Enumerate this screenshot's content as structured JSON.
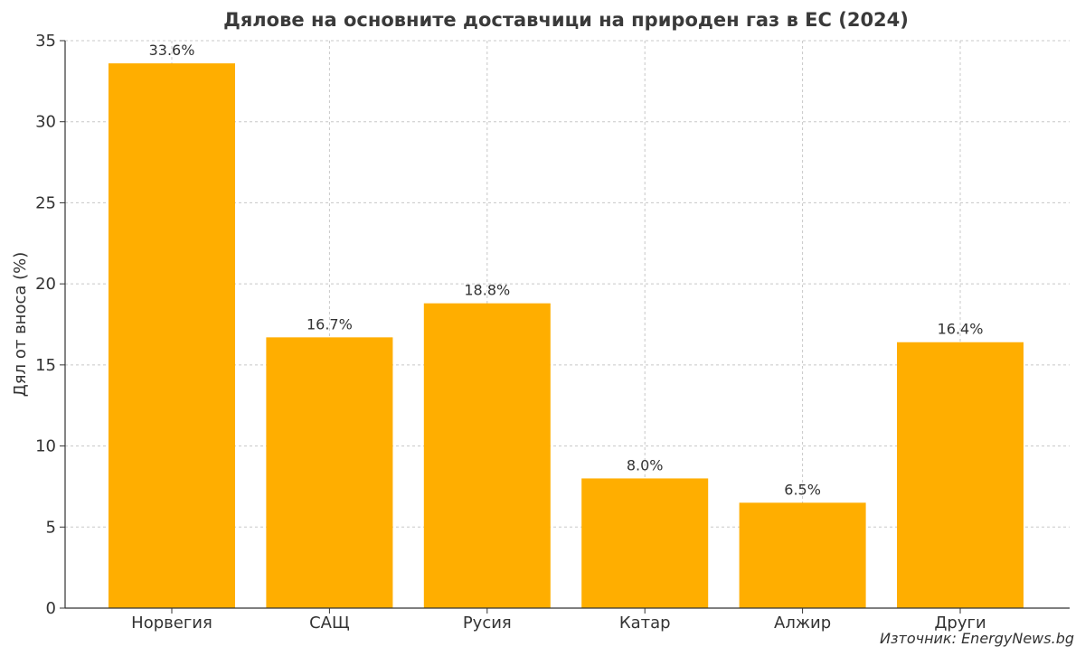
{
  "chart_data": {
    "type": "bar",
    "title": "Дялове на основните доставчици на природен газ в ЕС (2024)",
    "xlabel": "",
    "ylabel": "Дял от вноса (%)",
    "categories": [
      "Норвегия",
      "САЩ",
      "Русия",
      "Катар",
      "Алжир",
      "Други"
    ],
    "values": [
      33.6,
      16.7,
      18.8,
      8.0,
      6.5,
      16.4
    ],
    "data_labels": [
      "33.6%",
      "16.7%",
      "18.8%",
      "8.0%",
      "6.5%",
      "16.4%"
    ],
    "ylim": [
      0,
      35
    ],
    "yticks": [
      0,
      5,
      10,
      15,
      20,
      25,
      30,
      35
    ],
    "grid": true,
    "bar_color": "#FFAE00",
    "source": "Източник: EnergyNews.bg"
  }
}
